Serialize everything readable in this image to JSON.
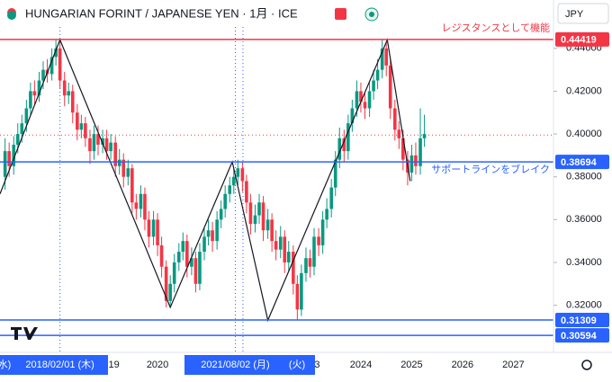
{
  "header": {
    "title": "HUNGARIAN FORINT / JAPANESE YEN · 1月 · ICE",
    "currency": "JPY"
  },
  "chart_data": {
    "type": "candlestick",
    "up_color": "#089981",
    "down_color": "#f23645",
    "x": [
      2017.0,
      2017.08,
      2017.17,
      2017.25,
      2017.33,
      2017.42,
      2017.5,
      2017.58,
      2017.67,
      2017.75,
      2017.83,
      2017.92,
      2018.0,
      2018.08,
      2018.17,
      2018.25,
      2018.33,
      2018.42,
      2018.5,
      2018.58,
      2018.67,
      2018.75,
      2018.83,
      2018.92,
      2019.0,
      2019.08,
      2019.17,
      2019.25,
      2019.33,
      2019.42,
      2019.5,
      2019.58,
      2019.67,
      2019.75,
      2019.83,
      2019.92,
      2020.0,
      2020.08,
      2020.17,
      2020.25,
      2020.33,
      2020.42,
      2020.5,
      2020.58,
      2020.67,
      2020.75,
      2020.83,
      2020.92,
      2021.0,
      2021.08,
      2021.17,
      2021.25,
      2021.33,
      2021.42,
      2021.5,
      2021.58,
      2021.67,
      2021.75,
      2021.83,
      2021.92,
      2022.0,
      2022.08,
      2022.17,
      2022.25,
      2022.33,
      2022.42,
      2022.5,
      2022.58,
      2022.67,
      2022.75,
      2022.83,
      2022.92,
      2023.0,
      2023.08,
      2023.17,
      2023.25,
      2023.33,
      2023.42,
      2023.5,
      2023.58,
      2023.67,
      2023.75,
      2023.83,
      2023.92,
      2024.0,
      2024.08,
      2024.17,
      2024.25,
      2024.33,
      2024.42,
      2024.5,
      2024.58,
      2024.67,
      2024.75,
      2024.83,
      2024.92,
      2025.0,
      2025.08,
      2025.17,
      2025.25
    ],
    "ohlc": [
      [
        0.38,
        0.398,
        0.374,
        0.392
      ],
      [
        0.392,
        0.396,
        0.38,
        0.385
      ],
      [
        0.385,
        0.399,
        0.381,
        0.395
      ],
      [
        0.395,
        0.405,
        0.391,
        0.4
      ],
      [
        0.4,
        0.409,
        0.396,
        0.405
      ],
      [
        0.405,
        0.416,
        0.401,
        0.412
      ],
      [
        0.412,
        0.424,
        0.409,
        0.42
      ],
      [
        0.42,
        0.425,
        0.414,
        0.418
      ],
      [
        0.418,
        0.429,
        0.415,
        0.425
      ],
      [
        0.425,
        0.434,
        0.421,
        0.43
      ],
      [
        0.43,
        0.435,
        0.424,
        0.428
      ],
      [
        0.428,
        0.44,
        0.425,
        0.436
      ],
      [
        0.436,
        0.4442,
        0.432,
        0.44
      ],
      [
        0.44,
        0.443,
        0.421,
        0.425
      ],
      [
        0.425,
        0.429,
        0.413,
        0.418
      ],
      [
        0.418,
        0.424,
        0.414,
        0.42
      ],
      [
        0.42,
        0.423,
        0.405,
        0.41
      ],
      [
        0.41,
        0.414,
        0.397,
        0.402
      ],
      [
        0.402,
        0.409,
        0.398,
        0.405
      ],
      [
        0.405,
        0.408,
        0.394,
        0.398
      ],
      [
        0.398,
        0.402,
        0.386,
        0.392
      ],
      [
        0.392,
        0.404,
        0.388,
        0.4
      ],
      [
        0.4,
        0.404,
        0.39,
        0.395
      ],
      [
        0.395,
        0.402,
        0.391,
        0.398
      ],
      [
        0.398,
        0.402,
        0.388,
        0.392
      ],
      [
        0.392,
        0.4,
        0.388,
        0.396
      ],
      [
        0.396,
        0.399,
        0.38,
        0.385
      ],
      [
        0.385,
        0.393,
        0.381,
        0.388
      ],
      [
        0.388,
        0.391,
        0.375,
        0.38
      ],
      [
        0.38,
        0.388,
        0.376,
        0.384
      ],
      [
        0.384,
        0.386,
        0.363,
        0.368
      ],
      [
        0.368,
        0.372,
        0.36,
        0.365
      ],
      [
        0.365,
        0.376,
        0.361,
        0.372
      ],
      [
        0.372,
        0.375,
        0.355,
        0.36
      ],
      [
        0.36,
        0.364,
        0.347,
        0.352
      ],
      [
        0.352,
        0.364,
        0.348,
        0.36
      ],
      [
        0.36,
        0.363,
        0.343,
        0.348
      ],
      [
        0.348,
        0.352,
        0.333,
        0.338
      ],
      [
        0.338,
        0.341,
        0.319,
        0.322
      ],
      [
        0.322,
        0.334,
        0.32,
        0.33
      ],
      [
        0.33,
        0.344,
        0.326,
        0.34
      ],
      [
        0.34,
        0.349,
        0.336,
        0.345
      ],
      [
        0.345,
        0.354,
        0.341,
        0.35
      ],
      [
        0.35,
        0.353,
        0.333,
        0.338
      ],
      [
        0.338,
        0.347,
        0.334,
        0.342
      ],
      [
        0.342,
        0.345,
        0.326,
        0.33
      ],
      [
        0.33,
        0.349,
        0.327,
        0.345
      ],
      [
        0.345,
        0.356,
        0.341,
        0.352
      ],
      [
        0.352,
        0.36,
        0.348,
        0.355
      ],
      [
        0.355,
        0.359,
        0.345,
        0.35
      ],
      [
        0.35,
        0.364,
        0.346,
        0.36
      ],
      [
        0.36,
        0.369,
        0.356,
        0.365
      ],
      [
        0.365,
        0.376,
        0.361,
        0.372
      ],
      [
        0.372,
        0.38,
        0.368,
        0.376
      ],
      [
        0.376,
        0.384,
        0.372,
        0.38
      ],
      [
        0.38,
        0.388,
        0.376,
        0.384
      ],
      [
        0.384,
        0.387,
        0.373,
        0.378
      ],
      [
        0.378,
        0.381,
        0.363,
        0.368
      ],
      [
        0.368,
        0.372,
        0.353,
        0.358
      ],
      [
        0.358,
        0.367,
        0.354,
        0.362
      ],
      [
        0.362,
        0.372,
        0.358,
        0.368
      ],
      [
        0.368,
        0.371,
        0.35,
        0.355
      ],
      [
        0.355,
        0.365,
        0.351,
        0.36
      ],
      [
        0.36,
        0.363,
        0.345,
        0.35
      ],
      [
        0.35,
        0.355,
        0.341,
        0.346
      ],
      [
        0.346,
        0.357,
        0.342,
        0.352
      ],
      [
        0.352,
        0.355,
        0.335,
        0.34
      ],
      [
        0.34,
        0.35,
        0.336,
        0.345
      ],
      [
        0.345,
        0.348,
        0.325,
        0.33
      ],
      [
        0.33,
        0.334,
        0.313,
        0.318
      ],
      [
        0.318,
        0.339,
        0.315,
        0.335
      ],
      [
        0.335,
        0.347,
        0.331,
        0.342
      ],
      [
        0.342,
        0.346,
        0.333,
        0.338
      ],
      [
        0.338,
        0.356,
        0.334,
        0.352
      ],
      [
        0.352,
        0.356,
        0.343,
        0.348
      ],
      [
        0.348,
        0.364,
        0.344,
        0.36
      ],
      [
        0.36,
        0.37,
        0.356,
        0.365
      ],
      [
        0.365,
        0.379,
        0.361,
        0.375
      ],
      [
        0.375,
        0.392,
        0.371,
        0.388
      ],
      [
        0.388,
        0.403,
        0.384,
        0.398
      ],
      [
        0.398,
        0.402,
        0.387,
        0.392
      ],
      [
        0.392,
        0.409,
        0.388,
        0.405
      ],
      [
        0.405,
        0.416,
        0.401,
        0.412
      ],
      [
        0.412,
        0.425,
        0.408,
        0.42
      ],
      [
        0.42,
        0.424,
        0.41,
        0.415
      ],
      [
        0.415,
        0.419,
        0.407,
        0.412
      ],
      [
        0.412,
        0.424,
        0.408,
        0.42
      ],
      [
        0.42,
        0.43,
        0.416,
        0.425
      ],
      [
        0.425,
        0.435,
        0.421,
        0.43
      ],
      [
        0.43,
        0.4442,
        0.426,
        0.44
      ],
      [
        0.44,
        0.443,
        0.427,
        0.432
      ],
      [
        0.432,
        0.435,
        0.407,
        0.412
      ],
      [
        0.412,
        0.416,
        0.397,
        0.402
      ],
      [
        0.402,
        0.406,
        0.393,
        0.398
      ],
      [
        0.398,
        0.402,
        0.383,
        0.388
      ],
      [
        0.388,
        0.392,
        0.376,
        0.382
      ],
      [
        0.382,
        0.395,
        0.378,
        0.39
      ],
      [
        0.39,
        0.396,
        0.381,
        0.385
      ],
      [
        0.385,
        0.412,
        0.381,
        0.398
      ],
      [
        0.398,
        0.409,
        0.394,
        0.4
      ]
    ],
    "xlim": [
      2016.9,
      2027.79
    ],
    "ylim": [
      0.298,
      0.45
    ],
    "xticks": [
      {
        "value": 2019,
        "label": "19"
      },
      2020,
      {
        "value": 2023,
        "label": "3"
      },
      2024,
      2025,
      2026,
      2027
    ],
    "yticks": [
      {
        "value": 0.44,
        "label": "0.44000"
      },
      {
        "value": 0.42,
        "label": "0.42000"
      },
      {
        "value": 0.4,
        "label": "0.40000"
      },
      {
        "value": 0.38,
        "label": "0.38000"
      },
      {
        "value": 0.36,
        "label": "0.36000"
      },
      {
        "value": 0.34,
        "label": "0.34000"
      },
      {
        "value": 0.32,
        "label": "0.32000"
      }
    ],
    "levels": [
      {
        "value": 0.44419,
        "color": "#f23645"
      },
      {
        "value": 0.38694,
        "color": "#2962ff"
      },
      {
        "value": 0.31309,
        "color": "#2962ff"
      },
      {
        "value": 0.30594,
        "color": "#2962ff"
      }
    ],
    "last_price": 0.3995,
    "trendline": {
      "x": [
        2016.9,
        2018.08,
        2020.25,
        2021.47,
        2022.17,
        2024.52,
        2024.97
      ],
      "y": [
        0.372,
        0.444,
        0.319,
        0.387,
        0.313,
        0.444,
        0.378
      ]
    },
    "vertical_markers": [
      2018.08,
      2021.53,
      2021.68
    ],
    "annotations": [
      {
        "text": "レジスタンスとして機能",
        "color": "#f23645"
      },
      {
        "text": "サポートラインをブレイク",
        "color": "#2962ff"
      }
    ],
    "crosshair_labels": [
      [
        "(水)",
        "2018/02/01 (木)"
      ],
      [
        "2021/08/02 (月)",
        "(火)"
      ]
    ]
  }
}
